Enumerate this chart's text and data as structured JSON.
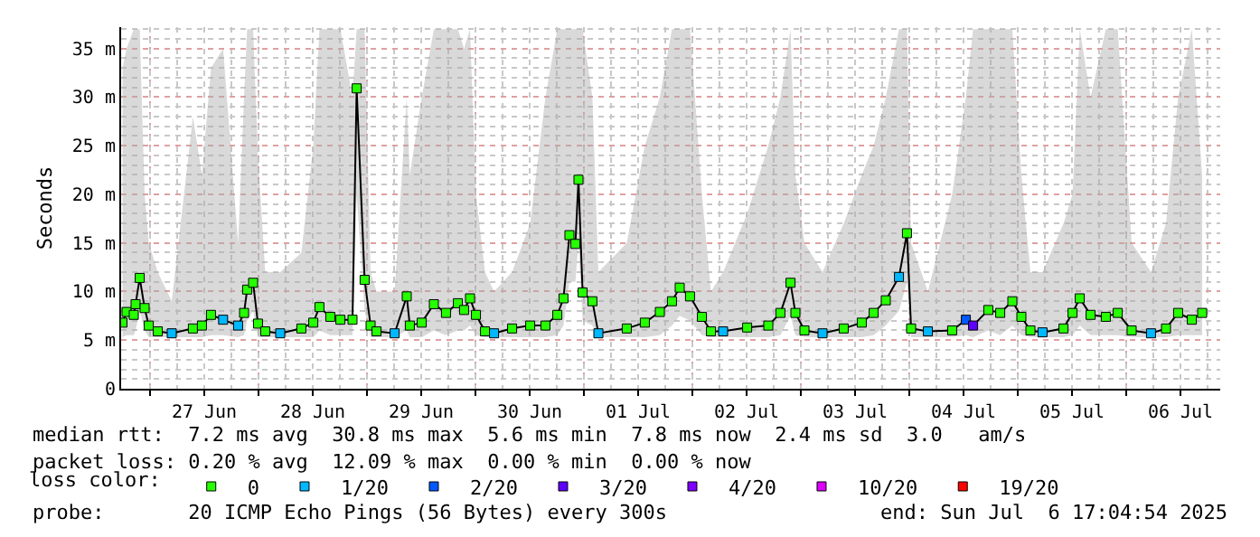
{
  "chart_data": {
    "type": "line",
    "ylabel": "Seconds",
    "legend_title": "loss color:",
    "legend": "bottom",
    "grid": true,
    "xlim": [
      "2025-06-26T17:36",
      "2025-07-06T20:48"
    ],
    "xticks": [
      {
        "value": "2025-06-27T00:00",
        "label": null
      },
      {
        "value": "2025-06-27T12:00",
        "label": "27 Jun"
      },
      {
        "value": "2025-06-28T00:00",
        "label": null
      },
      {
        "value": "2025-06-28T12:00",
        "label": "28 Jun"
      },
      {
        "value": "2025-06-29T00:00",
        "label": null
      },
      {
        "value": "2025-06-29T12:00",
        "label": "29 Jun"
      },
      {
        "value": "2025-06-30T00:00",
        "label": null
      },
      {
        "value": "2025-06-30T12:00",
        "label": "30 Jun"
      },
      {
        "value": "2025-07-01T00:00",
        "label": null
      },
      {
        "value": "2025-07-01T12:00",
        "label": "01 Jul"
      },
      {
        "value": "2025-07-02T00:00",
        "label": null
      },
      {
        "value": "2025-07-02T12:00",
        "label": "02 Jul"
      },
      {
        "value": "2025-07-03T00:00",
        "label": null
      },
      {
        "value": "2025-07-03T12:00",
        "label": "03 Jul"
      },
      {
        "value": "2025-07-04T00:00",
        "label": null
      },
      {
        "value": "2025-07-04T12:00",
        "label": "04 Jul"
      },
      {
        "value": "2025-07-05T00:00",
        "label": null
      },
      {
        "value": "2025-07-05T12:00",
        "label": "05 Jul"
      },
      {
        "value": "2025-07-06T00:00",
        "label": null
      },
      {
        "value": "2025-07-06T12:00",
        "label": "06 Jul"
      }
    ],
    "ylim": [
      0,
      37.2
    ],
    "yticks": [
      0,
      {
        "value": 5,
        "label": "5 m"
      },
      {
        "value": 10,
        "label": "10 m"
      },
      {
        "value": 15,
        "label": "15 m"
      },
      {
        "value": 20,
        "label": "20 m"
      },
      {
        "value": 25,
        "label": "25 m"
      },
      {
        "value": 30,
        "label": "30 m"
      },
      {
        "value": 35,
        "label": "35 m"
      }
    ],
    "x": [
      "2025-06-26T17:54",
      "2025-06-26T18:48",
      "2025-06-26T20:24",
      "2025-06-26T20:48",
      "2025-06-26T21:43",
      "2025-06-26T22:48",
      "2025-06-26T23:43",
      "2025-06-27T01:43",
      "2025-06-27T04:48",
      "2025-06-27T09:29",
      "2025-06-27T11:29",
      "2025-06-27T13:29",
      "2025-06-27T16:10",
      "2025-06-27T19:29",
      "2025-06-27T20:48",
      "2025-06-27T21:29",
      "2025-06-27T22:48",
      "2025-06-27T23:53",
      "2025-06-28T01:29",
      "2025-06-28T04:48",
      "2025-06-28T09:29",
      "2025-06-28T12:07",
      "2025-06-28T13:29",
      "2025-06-28T15:53",
      "2025-06-28T18:07",
      "2025-06-28T20:48",
      "2025-06-28T21:43",
      "2025-06-28T23:29",
      "2025-06-29T00:48",
      "2025-06-29T02:07",
      "2025-06-29T06:07",
      "2025-06-29T08:48",
      "2025-06-29T09:29",
      "2025-06-29T12:07",
      "2025-06-29T14:48",
      "2025-06-29T17:29",
      "2025-06-29T20:07",
      "2025-06-29T21:29",
      "2025-06-29T22:48",
      "2025-06-30T00:07",
      "2025-06-30T02:07",
      "2025-06-30T04:07",
      "2025-06-30T08:07",
      "2025-06-30T12:07",
      "2025-06-30T15:29",
      "2025-06-30T18:07",
      "2025-06-30T19:29",
      "2025-06-30T20:48",
      "2025-06-30T22:07",
      "2025-06-30T22:48",
      "2025-06-30T23:43",
      "2025-07-01T01:53",
      "2025-07-01T03:12",
      "2025-07-01T09:29",
      "2025-07-01T13:29",
      "2025-07-01T16:48",
      "2025-07-01T19:29",
      "2025-07-01T21:12",
      "2025-07-01T23:29",
      "2025-07-02T02:07",
      "2025-07-02T04:07",
      "2025-07-02T06:48",
      "2025-07-02T12:07",
      "2025-07-02T16:48",
      "2025-07-02T19:29",
      "2025-07-02T21:43",
      "2025-07-02T22:48",
      "2025-07-03T00:48",
      "2025-07-03T04:48",
      "2025-07-03T09:29",
      "2025-07-03T13:29",
      "2025-07-03T16:07",
      "2025-07-03T18:48",
      "2025-07-03T21:43",
      "2025-07-03T23:29",
      "2025-07-04T00:24",
      "2025-07-04T04:07",
      "2025-07-04T09:29",
      "2025-07-04T12:31",
      "2025-07-04T14:07",
      "2025-07-04T17:29",
      "2025-07-04T20:07",
      "2025-07-04T22:48",
      "2025-07-05T00:48",
      "2025-07-05T02:48",
      "2025-07-05T05:29",
      "2025-07-05T10:07",
      "2025-07-05T12:07",
      "2025-07-05T13:43",
      "2025-07-05T16:07",
      "2025-07-05T19:29",
      "2025-07-05T22:07",
      "2025-07-06T01:12",
      "2025-07-06T05:29",
      "2025-07-06T08:48",
      "2025-07-06T11:29",
      "2025-07-06T14:31",
      "2025-07-06T16:48"
    ],
    "series": [
      {
        "color": "#000000",
        "marker": "none",
        "line_style": "solid",
        "values": [
          6.8,
          7.9,
          7.6,
          8.7,
          11.4,
          8.3,
          6.5,
          5.9,
          5.7,
          6.2,
          6.5,
          7.6,
          7.1,
          6.5,
          7.8,
          10.2,
          10.9,
          6.7,
          5.9,
          5.7,
          6.2,
          6.8,
          8.4,
          7.4,
          7.1,
          7.1,
          30.9,
          11.2,
          6.5,
          5.9,
          5.7,
          9.5,
          6.5,
          6.8,
          8.7,
          7.8,
          8.8,
          8.1,
          9.3,
          7.6,
          5.9,
          5.7,
          6.2,
          6.5,
          6.5,
          7.6,
          9.3,
          15.8,
          14.9,
          21.5,
          9.9,
          9.0,
          5.7,
          6.2,
          6.8,
          7.9,
          9.0,
          10.4,
          9.5,
          7.4,
          5.9,
          5.9,
          6.3,
          6.5,
          7.8,
          10.9,
          7.8,
          6.0,
          5.7,
          6.2,
          6.8,
          7.8,
          9.1,
          11.5,
          16.0,
          6.2,
          5.9,
          6.0,
          7.1,
          6.5,
          8.1,
          7.8,
          9.0,
          7.4,
          6.0,
          5.8,
          6.2,
          7.8,
          9.3,
          7.6,
          7.4,
          7.8,
          6.0,
          5.7,
          6.2,
          7.8,
          7.1,
          7.8
        ],
        "lower": [
          5.3,
          5.5,
          5.5,
          6,
          8,
          6,
          5.3,
          5.3,
          5.3,
          5.3,
          5.3,
          5.5,
          5.5,
          5.3,
          5.5,
          7,
          8,
          5.3,
          5.3,
          5.3,
          5.3,
          5.3,
          6,
          5.5,
          5.5,
          5.5,
          20,
          8,
          5.3,
          5.3,
          5.3,
          6,
          5.3,
          5.3,
          6,
          5.5,
          6,
          6,
          6.5,
          5.5,
          5.3,
          5.3,
          5.3,
          5.3,
          5.3,
          5.5,
          6.5,
          11,
          11,
          15,
          7,
          6.5,
          5.3,
          5.3,
          5.3,
          5.5,
          6.5,
          7.5,
          7,
          5.5,
          5.3,
          5.3,
          5.3,
          5.3,
          5.5,
          7.5,
          5.5,
          5.3,
          5.3,
          5.3,
          5.3,
          5.5,
          6.5,
          8,
          11,
          5.3,
          5.3,
          5.3,
          5.5,
          5.3,
          6,
          5.5,
          6.5,
          5.5,
          5.3,
          5.3,
          5.3,
          5.5,
          6.5,
          5.5,
          5.5,
          5.5,
          5.3,
          5.3,
          5.3,
          5.5,
          5.5,
          5.5
        ],
        "upper": [
          33,
          35,
          37,
          37,
          37,
          20,
          15,
          12,
          9,
          28,
          22,
          33,
          35,
          15,
          30,
          37,
          37,
          24,
          12,
          12,
          14,
          25,
          37,
          37,
          37,
          30,
          37,
          37,
          12,
          10,
          10,
          30,
          22,
          30,
          37,
          37,
          37,
          35,
          37,
          20,
          12,
          10,
          12,
          17,
          30,
          37,
          37,
          37,
          37,
          37,
          37,
          30,
          12,
          15,
          25,
          30,
          37,
          37,
          37,
          20,
          10,
          12,
          18,
          25,
          30,
          37,
          22,
          15,
          12,
          17,
          22,
          25,
          30,
          37,
          37,
          15,
          10,
          20,
          30,
          37,
          37,
          37,
          37,
          22,
          12,
          12,
          17,
          20,
          37,
          30,
          37,
          37,
          15,
          12,
          17,
          30,
          37,
          22
        ]
      },
      {
        "type": "scatter",
        "name": "0",
        "color": "#26ff00",
        "marker": "square",
        "x": [
          "2025-06-26T17:54",
          "2025-06-26T18:48",
          "2025-06-26T20:24",
          "2025-06-26T20:48",
          "2025-06-26T21:43",
          "2025-06-26T22:48",
          "2025-06-26T23:43",
          "2025-06-27T01:43",
          "2025-06-27T09:29",
          "2025-06-27T11:29",
          "2025-06-27T13:29",
          "2025-06-27T20:48",
          "2025-06-27T21:29",
          "2025-06-27T22:48",
          "2025-06-27T23:53",
          "2025-06-28T01:29",
          "2025-06-28T09:29",
          "2025-06-28T12:07",
          "2025-06-28T13:29",
          "2025-06-28T15:53",
          "2025-06-28T18:07",
          "2025-06-28T20:48",
          "2025-06-28T21:43",
          "2025-06-28T23:29",
          "2025-06-29T00:48",
          "2025-06-29T02:07",
          "2025-06-29T08:48",
          "2025-06-29T09:29",
          "2025-06-29T12:07",
          "2025-06-29T14:48",
          "2025-06-29T17:29",
          "2025-06-29T20:07",
          "2025-06-29T21:29",
          "2025-06-29T22:48",
          "2025-06-30T00:07",
          "2025-06-30T02:07",
          "2025-06-30T08:07",
          "2025-06-30T12:07",
          "2025-06-30T15:29",
          "2025-06-30T18:07",
          "2025-06-30T19:29",
          "2025-06-30T20:48",
          "2025-06-30T22:07",
          "2025-06-30T22:48",
          "2025-06-30T23:43",
          "2025-07-01T01:53",
          "2025-07-01T09:29",
          "2025-07-01T13:29",
          "2025-07-01T16:48",
          "2025-07-01T19:29",
          "2025-07-01T21:12",
          "2025-07-01T23:29",
          "2025-07-02T02:07",
          "2025-07-02T04:07",
          "2025-07-02T12:07",
          "2025-07-02T16:48",
          "2025-07-02T19:29",
          "2025-07-02T21:43",
          "2025-07-02T22:48",
          "2025-07-03T00:48",
          "2025-07-03T09:29",
          "2025-07-03T13:29",
          "2025-07-03T16:07",
          "2025-07-03T18:48",
          "2025-07-03T23:29",
          "2025-07-04T00:24",
          "2025-07-04T09:29",
          "2025-07-04T17:29",
          "2025-07-04T20:07",
          "2025-07-04T22:48",
          "2025-07-05T00:48",
          "2025-07-05T02:48",
          "2025-07-05T10:07",
          "2025-07-05T12:07",
          "2025-07-05T13:43",
          "2025-07-05T16:07",
          "2025-07-05T19:29",
          "2025-07-05T22:07",
          "2025-07-06T01:12",
          "2025-07-06T08:48",
          "2025-07-06T11:29",
          "2025-07-06T14:31",
          "2025-07-06T16:48"
        ],
        "values": [
          6.8,
          7.9,
          7.6,
          8.7,
          11.4,
          8.3,
          6.5,
          5.9,
          6.2,
          6.5,
          7.6,
          7.8,
          10.2,
          10.9,
          6.7,
          5.9,
          6.2,
          6.8,
          8.4,
          7.4,
          7.1,
          7.1,
          30.9,
          11.2,
          6.5,
          5.9,
          9.5,
          6.5,
          6.8,
          8.7,
          7.8,
          8.8,
          8.1,
          9.3,
          7.6,
          5.9,
          6.2,
          6.5,
          6.5,
          7.6,
          9.3,
          15.8,
          14.9,
          21.5,
          9.9,
          9.0,
          6.2,
          6.8,
          7.9,
          9.0,
          10.4,
          9.5,
          7.4,
          5.9,
          6.3,
          6.5,
          7.8,
          10.9,
          7.8,
          6.0,
          6.2,
          6.8,
          7.8,
          9.1,
          16.0,
          6.2,
          6.0,
          8.1,
          7.8,
          9.0,
          7.4,
          6.0,
          6.2,
          7.8,
          9.3,
          7.6,
          7.4,
          7.8,
          6.0,
          6.2,
          7.8,
          7.1,
          7.8
        ]
      },
      {
        "type": "scatter",
        "name": "1/20",
        "color": "#00b8ff",
        "marker": "square",
        "x": [
          "2025-06-27T04:48",
          "2025-06-27T16:10",
          "2025-06-27T19:29",
          "2025-06-28T04:48",
          "2025-06-29T06:07",
          "2025-06-30T04:07",
          "2025-07-01T03:12",
          "2025-07-02T06:48",
          "2025-07-03T04:48",
          "2025-07-03T21:43",
          "2025-07-04T04:07",
          "2025-07-05T05:29",
          "2025-07-06T05:29"
        ],
        "values": [
          5.7,
          7.1,
          6.5,
          5.7,
          5.7,
          5.7,
          5.7,
          5.9,
          5.7,
          11.5,
          5.9,
          5.8,
          5.7
        ]
      },
      {
        "type": "scatter",
        "name": "2/20",
        "color": "#0059ff",
        "marker": "square",
        "x": [
          "2025-07-04T12:31"
        ],
        "values": [
          7.1
        ]
      },
      {
        "type": "scatter",
        "name": "3/20",
        "color": "#5e00ff",
        "marker": "square",
        "x": [
          "2025-07-04T14:07"
        ],
        "values": [
          6.5
        ]
      },
      {
        "type": "scatter",
        "name": "4/20",
        "color": "#7e00ff",
        "marker": "square",
        "values": [
          null,
          null,
          null,
          null,
          null,
          null,
          null,
          null,
          null,
          null,
          null,
          null,
          null,
          null,
          null,
          null,
          null,
          null,
          null,
          null,
          null,
          null,
          null,
          null,
          null,
          null,
          null,
          null,
          null,
          null,
          null,
          null,
          null,
          null,
          null,
          null,
          null,
          null,
          null,
          null,
          null,
          null,
          null,
          null,
          null,
          null,
          null,
          null,
          null,
          null,
          null,
          null,
          null,
          null,
          null,
          null,
          null,
          null,
          null,
          null,
          null,
          null,
          null,
          null,
          null,
          null,
          null,
          null,
          null,
          null,
          null,
          null,
          null,
          null,
          null,
          null,
          null,
          null,
          null,
          null,
          null,
          null,
          null,
          null,
          null,
          null,
          null,
          null,
          null,
          null,
          null,
          null,
          null,
          null,
          null,
          null,
          null,
          null
        ]
      },
      {
        "type": "scatter",
        "name": "10/20",
        "color": "#dd00ff",
        "marker": "square",
        "values": [
          null,
          null,
          null,
          null,
          null,
          null,
          null,
          null,
          null,
          null,
          null,
          null,
          null,
          null,
          null,
          null,
          null,
          null,
          null,
          null,
          null,
          null,
          null,
          null,
          null,
          null,
          null,
          null,
          null,
          null,
          null,
          null,
          null,
          null,
          null,
          null,
          null,
          null,
          null,
          null,
          null,
          null,
          null,
          null,
          null,
          null,
          null,
          null,
          null,
          null,
          null,
          null,
          null,
          null,
          null,
          null,
          null,
          null,
          null,
          null,
          null,
          null,
          null,
          null,
          null,
          null,
          null,
          null,
          null,
          null,
          null,
          null,
          null,
          null,
          null,
          null,
          null,
          null,
          null,
          null,
          null,
          null,
          null,
          null,
          null,
          null,
          null,
          null,
          null,
          null,
          null,
          null,
          null,
          null,
          null,
          null,
          null,
          null
        ]
      },
      {
        "type": "scatter",
        "name": "19/20",
        "color": "#ff0000",
        "marker": "square",
        "values": [
          null,
          null,
          null,
          null,
          null,
          null,
          null,
          null,
          null,
          null,
          null,
          null,
          null,
          null,
          null,
          null,
          null,
          null,
          null,
          null,
          null,
          null,
          null,
          null,
          null,
          null,
          null,
          null,
          null,
          null,
          null,
          null,
          null,
          null,
          null,
          null,
          null,
          null,
          null,
          null,
          null,
          null,
          null,
          null,
          null,
          null,
          null,
          null,
          null,
          null,
          null,
          null,
          null,
          null,
          null,
          null,
          null,
          null,
          null,
          null,
          null,
          null,
          null,
          null,
          null,
          null,
          null,
          null,
          null,
          null,
          null,
          null,
          null,
          null,
          null,
          null,
          null,
          null,
          null,
          null,
          null,
          null,
          null,
          null,
          null,
          null,
          null,
          null,
          null,
          null,
          null,
          null,
          null,
          null,
          null,
          null,
          null,
          null
        ]
      }
    ],
    "annotations": [
      "median rtt:  7.2 ms avg  30.8 ms max  5.6 ms min  7.8 ms now  2.4 ms sd  3.0   am/s",
      "packet loss: 0.20 % avg  12.09 % max  0.00 % min  0.00 % now",
      "probe:       20 ICMP Echo Pings (56 Bytes) every 300s",
      "end: Sun Jul  6 17:04:54 2025"
    ]
  }
}
